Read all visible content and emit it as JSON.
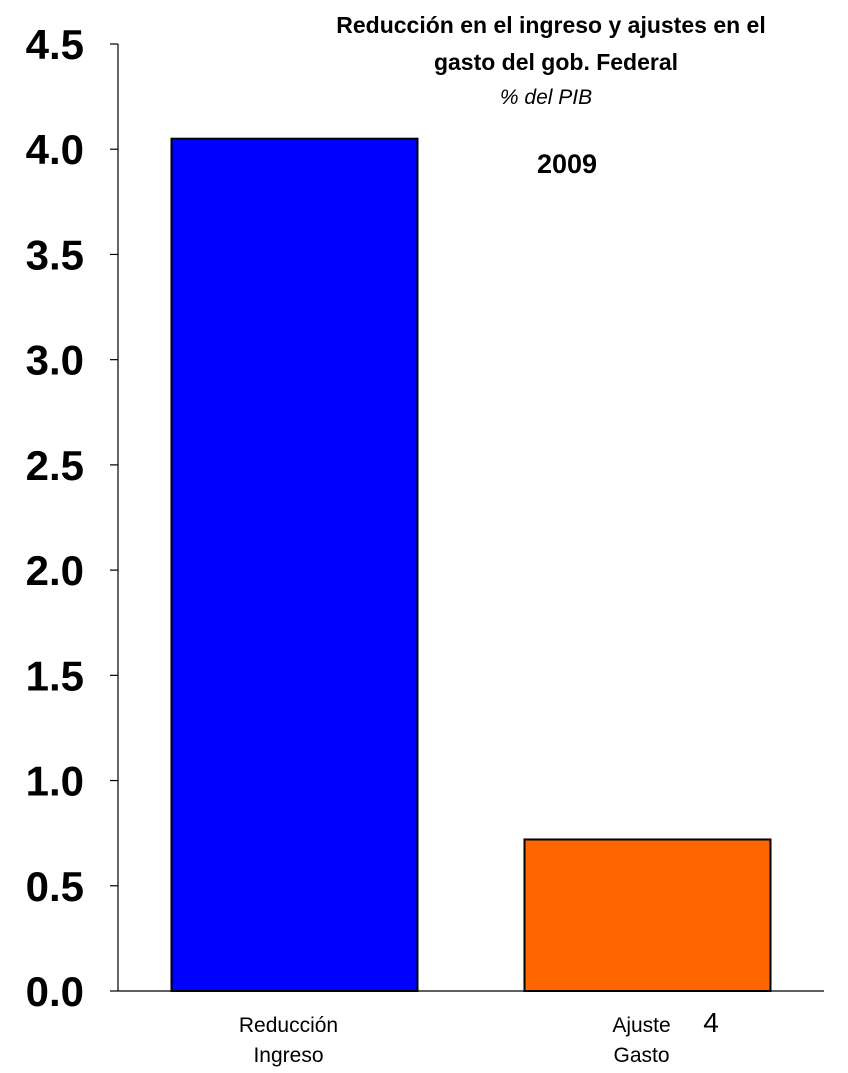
{
  "chart_data": {
    "type": "bar",
    "title_lines": [
      "Reducción en el ingreso y ajustes en el",
      "gasto del gob. Federal"
    ],
    "subtitle": "% del PIB",
    "annotation": "2009",
    "categories": [
      [
        "Reducción",
        "Ingreso"
      ],
      [
        "Ajuste",
        "Gasto"
      ]
    ],
    "values": [
      4.05,
      0.72
    ],
    "colors": [
      "#0000ff",
      "#ff6600"
    ],
    "y_ticks": [
      "0.0",
      "0.5",
      "1.0",
      "1.5",
      "2.0",
      "2.5",
      "3.0",
      "3.5",
      "4.0",
      "4.5"
    ],
    "ylim": [
      0,
      4.5
    ],
    "xlabel": "",
    "ylabel": "",
    "grid": false,
    "legend": "none"
  },
  "page_number": "4"
}
